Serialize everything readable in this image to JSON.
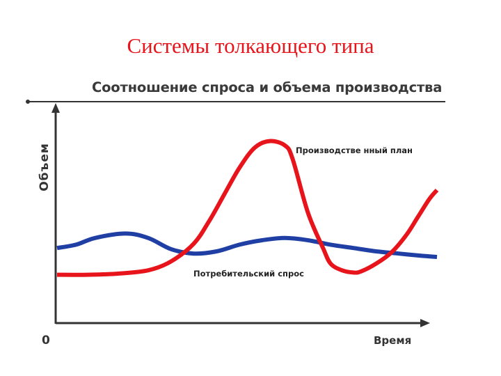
{
  "slide": {
    "title": "Системы толкающего типа"
  },
  "chart_data": {
    "type": "line",
    "title": "Соотношение спроса и объема производства",
    "xlabel": "Время",
    "ylabel": "Объем",
    "origin_label": "0",
    "x_range": [
      0,
      100
    ],
    "y_range": [
      0,
      100
    ],
    "grid": false,
    "legend": "none",
    "series": [
      {
        "name": "Производственный план",
        "color": "#e8141b",
        "x": [
          0,
          8,
          16,
          24,
          30,
          36,
          40,
          44,
          48,
          52,
          56,
          60,
          62,
          66,
          70,
          72,
          75,
          78,
          80,
          84,
          88,
          92,
          95,
          98,
          100
        ],
        "y": [
          22,
          22,
          22.5,
          24,
          28,
          36,
          46,
          58,
          70,
          79,
          82,
          80,
          74,
          50,
          34,
          27,
          24,
          23,
          23.5,
          27,
          32,
          40,
          48,
          56,
          60
        ]
      },
      {
        "name": "Потребительский спрос",
        "color": "#1f3fa5",
        "x": [
          0,
          5,
          10,
          18,
          24,
          30,
          36,
          42,
          48,
          54,
          60,
          66,
          72,
          78,
          84,
          90,
          96,
          100
        ],
        "y": [
          34,
          35.5,
          38.5,
          40.5,
          38.5,
          33.5,
          31.5,
          32.5,
          35.5,
          37.5,
          38.5,
          37.5,
          35.5,
          34,
          32.5,
          31.5,
          30.5,
          30
        ]
      }
    ],
    "annotations": [
      {
        "text": "Производстве нный план",
        "series": "Производственный план"
      },
      {
        "text": "Потребительский спрос",
        "series": "Потребительский спрос"
      }
    ]
  }
}
